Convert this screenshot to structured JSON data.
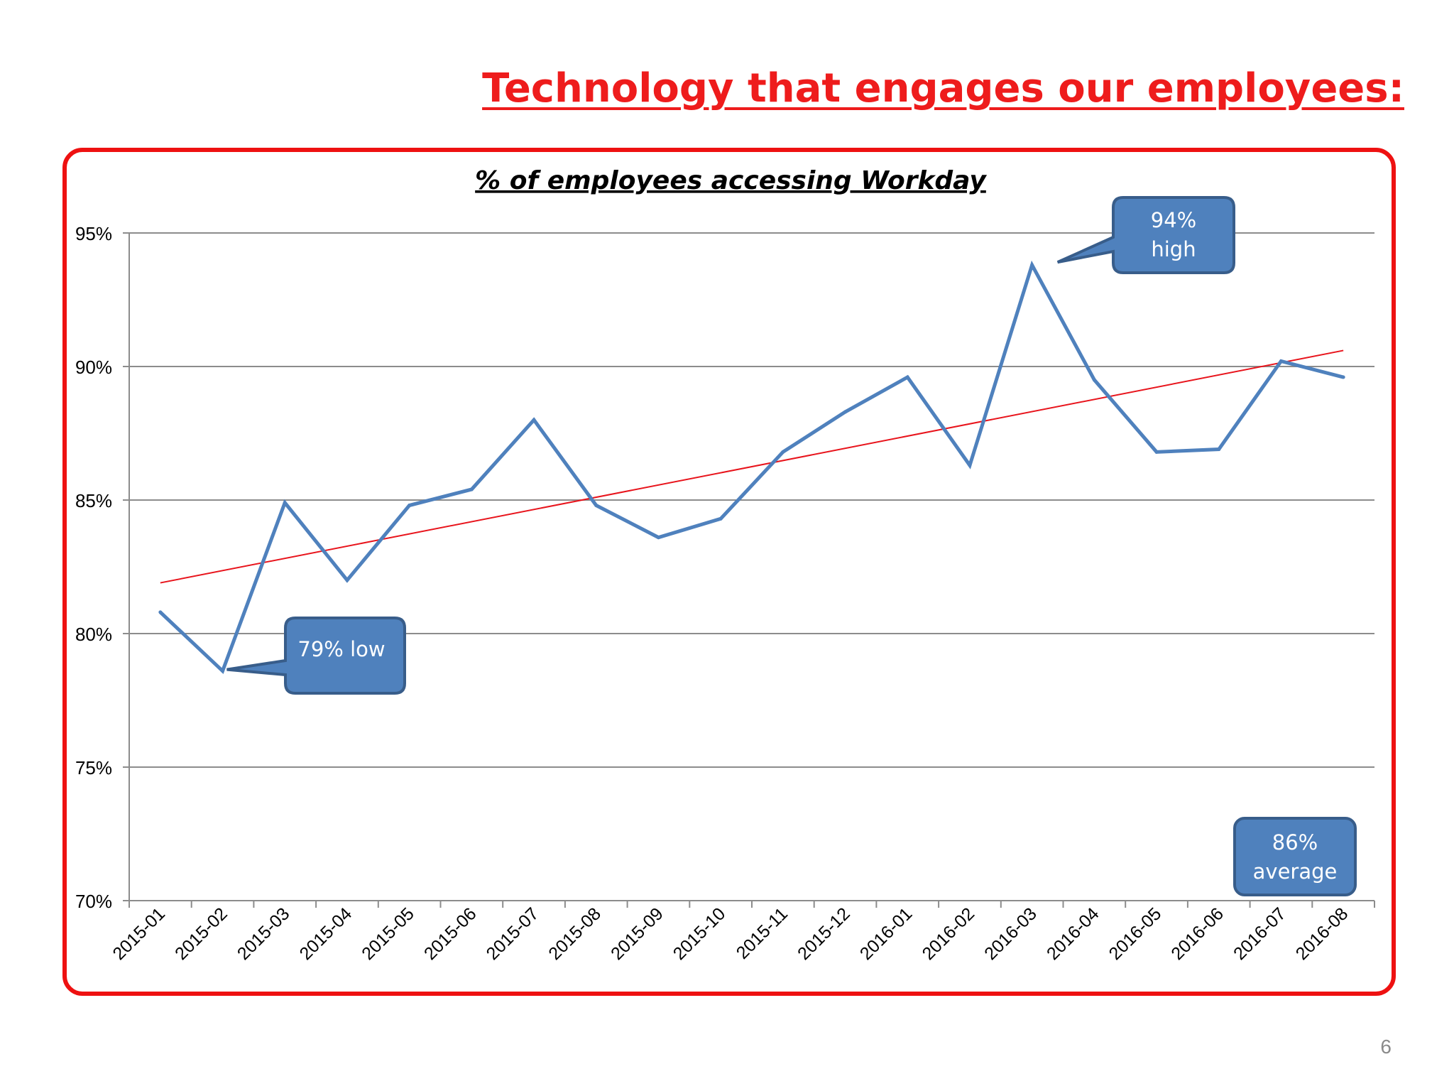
{
  "slide": {
    "title": "Technology that engages our employees:",
    "page_number": "6"
  },
  "chart_data": {
    "type": "line",
    "title": "% of employees accessing Workday",
    "xlabel": "",
    "ylabel": "",
    "ylim": [
      70,
      95
    ],
    "y_ticks": [
      "70%",
      "75%",
      "80%",
      "85%",
      "90%",
      "95%"
    ],
    "y_tick_values": [
      70,
      75,
      80,
      85,
      90,
      95
    ],
    "categories": [
      "2015-01",
      "2015-02",
      "2015-03",
      "2015-04",
      "2015-05",
      "2015-06",
      "2015-07",
      "2015-08",
      "2015-09",
      "2015-10",
      "2015-11",
      "2015-12",
      "2016-01",
      "2016-02",
      "2016-03",
      "2016-04",
      "2016-05",
      "2016-06",
      "2016-07",
      "2016-08"
    ],
    "series": [
      {
        "values": [
          80.8,
          78.6,
          84.9,
          82.0,
          84.8,
          85.4,
          88.0,
          84.8,
          83.6,
          84.3,
          86.8,
          88.3,
          89.6,
          86.3,
          93.8,
          89.5,
          86.8,
          86.9,
          90.2,
          89.6
        ],
        "color": "#4f81bd"
      }
    ],
    "trendline": {
      "start": 81.9,
      "end": 90.6,
      "color": "#e8141c"
    },
    "grid": true,
    "annotations": {
      "low": {
        "text": "79% low"
      },
      "high": {
        "line1": "94%",
        "line2": "high"
      },
      "average": {
        "line1": "86%",
        "line2": "average"
      }
    },
    "colors": {
      "frame": "#ee1111",
      "callout_fill": "#4f81bd",
      "callout_border": "#385d8a"
    }
  }
}
